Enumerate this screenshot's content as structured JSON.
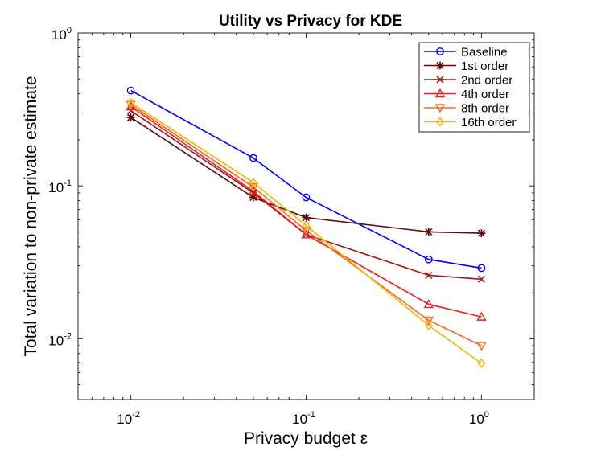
{
  "chart_data": {
    "type": "line",
    "title": "Utility vs Privacy for KDE",
    "xlabel": "Privacy budget ε",
    "ylabel": "Total variation to non-private estimate",
    "x_scale": "log",
    "y_scale": "log",
    "xlim": [
      0.005,
      2
    ],
    "ylim": [
      0.004,
      1
    ],
    "x_ticks": [
      {
        "value": 0.01,
        "base": "10",
        "exp": "-2"
      },
      {
        "value": 0.1,
        "base": "10",
        "exp": "-1"
      },
      {
        "value": 1,
        "base": "10",
        "exp": "0"
      }
    ],
    "y_ticks": [
      {
        "value": 0.01,
        "base": "10",
        "exp": "-2"
      },
      {
        "value": 0.1,
        "base": "10",
        "exp": "-1"
      },
      {
        "value": 1,
        "base": "10",
        "exp": "0"
      }
    ],
    "x": [
      0.01,
      0.05,
      0.1,
      0.5,
      1
    ],
    "legend_position": "top-right",
    "series": [
      {
        "name": "Baseline",
        "color": "#0000ff",
        "marker": "circle",
        "values": [
          0.42,
          0.152,
          0.084,
          0.033,
          0.029
        ]
      },
      {
        "name": "1st order",
        "color": "#5c0a0a",
        "marker": "asterisk",
        "values": [
          0.28,
          0.084,
          0.062,
          0.05,
          0.049
        ]
      },
      {
        "name": "2nd order",
        "color": "#a81414",
        "marker": "x",
        "values": [
          0.31,
          0.09,
          0.048,
          0.026,
          0.0245
        ]
      },
      {
        "name": "4th order",
        "color": "#ee1c1c",
        "marker": "triangle-up",
        "values": [
          0.33,
          0.092,
          0.048,
          0.0168,
          0.0139
        ]
      },
      {
        "name": "8th order",
        "color": "#f26a22",
        "marker": "triangle-down",
        "values": [
          0.34,
          0.098,
          0.051,
          0.0132,
          0.009
        ]
      },
      {
        "name": "16th order",
        "color": "#f5b400",
        "marker": "diamond",
        "values": [
          0.35,
          0.105,
          0.055,
          0.0122,
          0.0069
        ]
      }
    ]
  }
}
